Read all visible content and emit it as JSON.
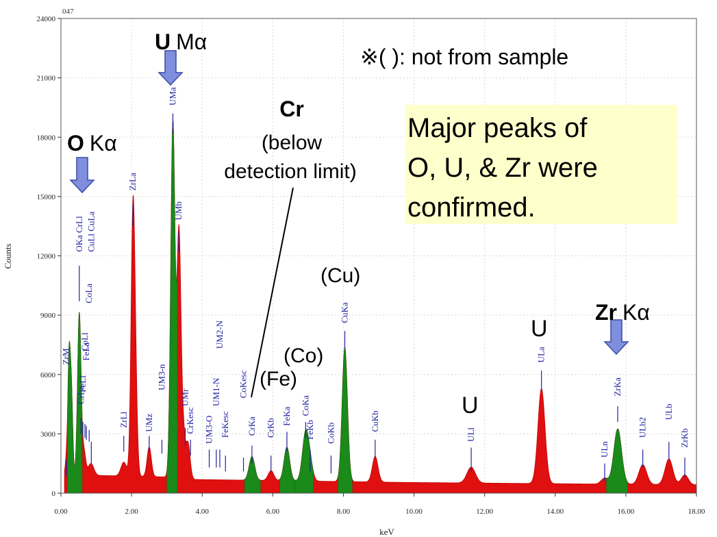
{
  "chart_data": {
    "type": "area",
    "title": "",
    "spectrum_id": "047",
    "xlabel": "keV",
    "ylabel": "Counts",
    "xlim": [
      0,
      18
    ],
    "ylim": [
      0,
      24000
    ],
    "x_ticks": [
      "0.00",
      "2.00",
      "4.00",
      "6.00",
      "8.00",
      "10.00",
      "12.00",
      "14.00",
      "16.00",
      "18.00"
    ],
    "y_ticks": [
      "0",
      "3000",
      "6000",
      "9000",
      "12000",
      "15000",
      "18000",
      "21000",
      "24000"
    ],
    "colors": {
      "spectrum": "#e01010",
      "peak_highlight": "#1a8a1a",
      "line_label": "#2020a0",
      "arrow": "#7f8fdd",
      "note_box": "#ffffcc"
    },
    "peaks": [
      {
        "x": 0.18,
        "y": 1500,
        "w": 0.04
      },
      {
        "x": 0.23,
        "y": 5000,
        "w": 0.03
      },
      {
        "x": 0.28,
        "y": 3600,
        "w": 0.03
      },
      {
        "x": 0.32,
        "y": 2000,
        "w": 0.03
      },
      {
        "x": 0.52,
        "y": 8200,
        "w": 0.05
      },
      {
        "x": 0.65,
        "y": 1200,
        "w": 0.05
      },
      {
        "x": 0.85,
        "y": 600,
        "w": 0.08
      },
      {
        "x": 1.78,
        "y": 700,
        "w": 0.08
      },
      {
        "x": 2.04,
        "y": 13300,
        "w": 0.055
      },
      {
        "x": 2.12,
        "y": 3000,
        "w": 0.05
      },
      {
        "x": 2.5,
        "y": 1500,
        "w": 0.06
      },
      {
        "x": 3.17,
        "y": 18000,
        "w": 0.06
      },
      {
        "x": 3.34,
        "y": 12000,
        "w": 0.055
      },
      {
        "x": 3.45,
        "y": 2500,
        "w": 0.06
      },
      {
        "x": 3.6,
        "y": 1800,
        "w": 0.06
      },
      {
        "x": 5.41,
        "y": 1200,
        "w": 0.08
      },
      {
        "x": 5.95,
        "y": 500,
        "w": 0.08
      },
      {
        "x": 6.4,
        "y": 1700,
        "w": 0.08
      },
      {
        "x": 6.93,
        "y": 2400,
        "w": 0.09
      },
      {
        "x": 7.06,
        "y": 700,
        "w": 0.08
      },
      {
        "x": 8.04,
        "y": 6800,
        "w": 0.075
      },
      {
        "x": 8.9,
        "y": 1300,
        "w": 0.08
      },
      {
        "x": 11.62,
        "y": 800,
        "w": 0.12
      },
      {
        "x": 13.61,
        "y": 4800,
        "w": 0.1
      },
      {
        "x": 15.4,
        "y": 300,
        "w": 0.1
      },
      {
        "x": 15.77,
        "y": 2800,
        "w": 0.11
      },
      {
        "x": 16.48,
        "y": 1000,
        "w": 0.11
      },
      {
        "x": 17.22,
        "y": 1300,
        "w": 0.11
      },
      {
        "x": 17.67,
        "y": 500,
        "w": 0.1
      }
    ],
    "green_regions": [
      [
        0.18,
        0.6
      ],
      [
        3.0,
        3.3
      ],
      [
        5.2,
        5.65
      ],
      [
        6.2,
        6.62
      ],
      [
        6.62,
        7.15
      ],
      [
        7.85,
        8.25
      ],
      [
        15.45,
        16.05
      ]
    ],
    "line_markers": [
      {
        "label": "ZrM",
        "x": 0.15,
        "y1": 850,
        "y2": 1700,
        "ly": 6500
      },
      {
        "label": "CrLa",
        "x": 0.57,
        "y1": 3000,
        "y2": 3800,
        "ly": 4500
      },
      {
        "label": "FeLl",
        "x": 0.62,
        "y1": 2900,
        "y2": 3600,
        "ly": 5100
      },
      {
        "label": "CoLl",
        "x": 0.68,
        "y1": 2800,
        "y2": 3500,
        "ly": 7200
      },
      {
        "label": "FeLa",
        "x": 0.72,
        "y1": 2700,
        "y2": 3400,
        "ly": 6700
      },
      {
        "label": "OKa CrLl",
        "x": 0.52,
        "y1": 9700,
        "y2": 11500,
        "ly": 12200
      },
      {
        "label": "CuLl CuLa",
        "x": 0.86,
        "y1": 1500,
        "y2": 2600,
        "ly": 12200
      },
      {
        "label": "CoLa",
        "x": 0.8,
        "y1": 2600,
        "y2": 3200,
        "ly": 9600
      },
      {
        "label": "ZrLa",
        "x": 2.04,
        "y1": 13500,
        "y2": 14600,
        "ly": 15300
      },
      {
        "label": "ZrLl",
        "x": 1.78,
        "y1": 2100,
        "y2": 2900,
        "ly": 3300
      },
      {
        "label": "UMz",
        "x": 2.5,
        "y1": 2100,
        "y2": 2900,
        "ly": 3100
      },
      {
        "label": "UM3-n",
        "x": 2.86,
        "y1": 2000,
        "y2": 2700,
        "ly": 5200
      },
      {
        "label": "UMa",
        "x": 3.17,
        "y1": 18200,
        "y2": 19200,
        "ly": 19600
      },
      {
        "label": "UMb",
        "x": 3.34,
        "y1": 12200,
        "y2": 13200,
        "ly": 13800
      },
      {
        "label": "UMr",
        "x": 3.52,
        "y1": 2400,
        "y2": 3300,
        "ly": 4400
      },
      {
        "label": "CrKesc",
        "x": 3.67,
        "y1": 1900,
        "y2": 2700,
        "ly": 3000
      },
      {
        "label": "UM3-O",
        "x": 4.2,
        "y1": 1300,
        "y2": 2200,
        "ly": 2500
      },
      {
        "label": "UM1-N",
        "x": 4.4,
        "y1": 1300,
        "y2": 2200,
        "ly": 4400
      },
      {
        "label": "UM2-N",
        "x": 4.5,
        "y1": 1300,
        "y2": 2200,
        "ly": 7300
      },
      {
        "label": "FeKesc",
        "x": 4.66,
        "y1": 1100,
        "y2": 1900,
        "ly": 2800
      },
      {
        "label": "CoKesc",
        "x": 5.17,
        "y1": 1100,
        "y2": 1800,
        "ly": 4800
      },
      {
        "label": "CrKa",
        "x": 5.41,
        "y1": 1500,
        "y2": 2400,
        "ly": 2900
      },
      {
        "label": "CrKb",
        "x": 5.95,
        "y1": 1100,
        "y2": 1900,
        "ly": 2800
      },
      {
        "label": "FeKa",
        "x": 6.4,
        "y1": 2100,
        "y2": 3100,
        "ly": 3400
      },
      {
        "label": "FeKb",
        "x": 7.06,
        "y1": 1100,
        "y2": 2200,
        "ly": 2700
      },
      {
        "label": "CoKa",
        "x": 6.93,
        "y1": 2800,
        "y2": 3600,
        "ly": 3900
      },
      {
        "label": "CoKb",
        "x": 7.65,
        "y1": 1000,
        "y2": 1900,
        "ly": 2500
      },
      {
        "label": "CuKa",
        "x": 8.04,
        "y1": 7300,
        "y2": 8200,
        "ly": 8600
      },
      {
        "label": "CuKb",
        "x": 8.9,
        "y1": 1800,
        "y2": 2700,
        "ly": 3100
      },
      {
        "label": "ULl",
        "x": 11.62,
        "y1": 1100,
        "y2": 2300,
        "ly": 2600
      },
      {
        "label": "ULa",
        "x": 13.61,
        "y1": 5200,
        "y2": 6200,
        "ly": 6600
      },
      {
        "label": "ULn",
        "x": 15.4,
        "y1": 600,
        "y2": 1500,
        "ly": 1800
      },
      {
        "label": "ZrKa",
        "x": 15.77,
        "y1": 3600,
        "y2": 4400,
        "ly": 4900
      },
      {
        "label": "ULb2",
        "x": 16.48,
        "y1": 1300,
        "y2": 2200,
        "ly": 2800
      },
      {
        "label": "ULb",
        "x": 17.22,
        "y1": 1700,
        "y2": 2600,
        "ly": 3700
      },
      {
        "label": "ZrKb",
        "x": 17.67,
        "y1": 800,
        "y2": 1800,
        "ly": 2300
      }
    ],
    "annotations": {
      "o_bold": "O",
      "o_rest": "Kα",
      "u_bold": "U",
      "u_rest": "Mα",
      "cr_bold": "Cr",
      "cr_line1": "(below",
      "cr_line2": "detection limit)",
      "note": "※( ): not from sample",
      "major_line1": "Major peaks of",
      "major_line2": "O, U, & Zr were",
      "major_line3": "confirmed.",
      "cu": "(Cu)",
      "co": "(Co)",
      "fe": "(Fe)",
      "u_la": "U",
      "u_ll": "U",
      "zr_bold": "Zr",
      "zr_rest": "Kα"
    }
  }
}
